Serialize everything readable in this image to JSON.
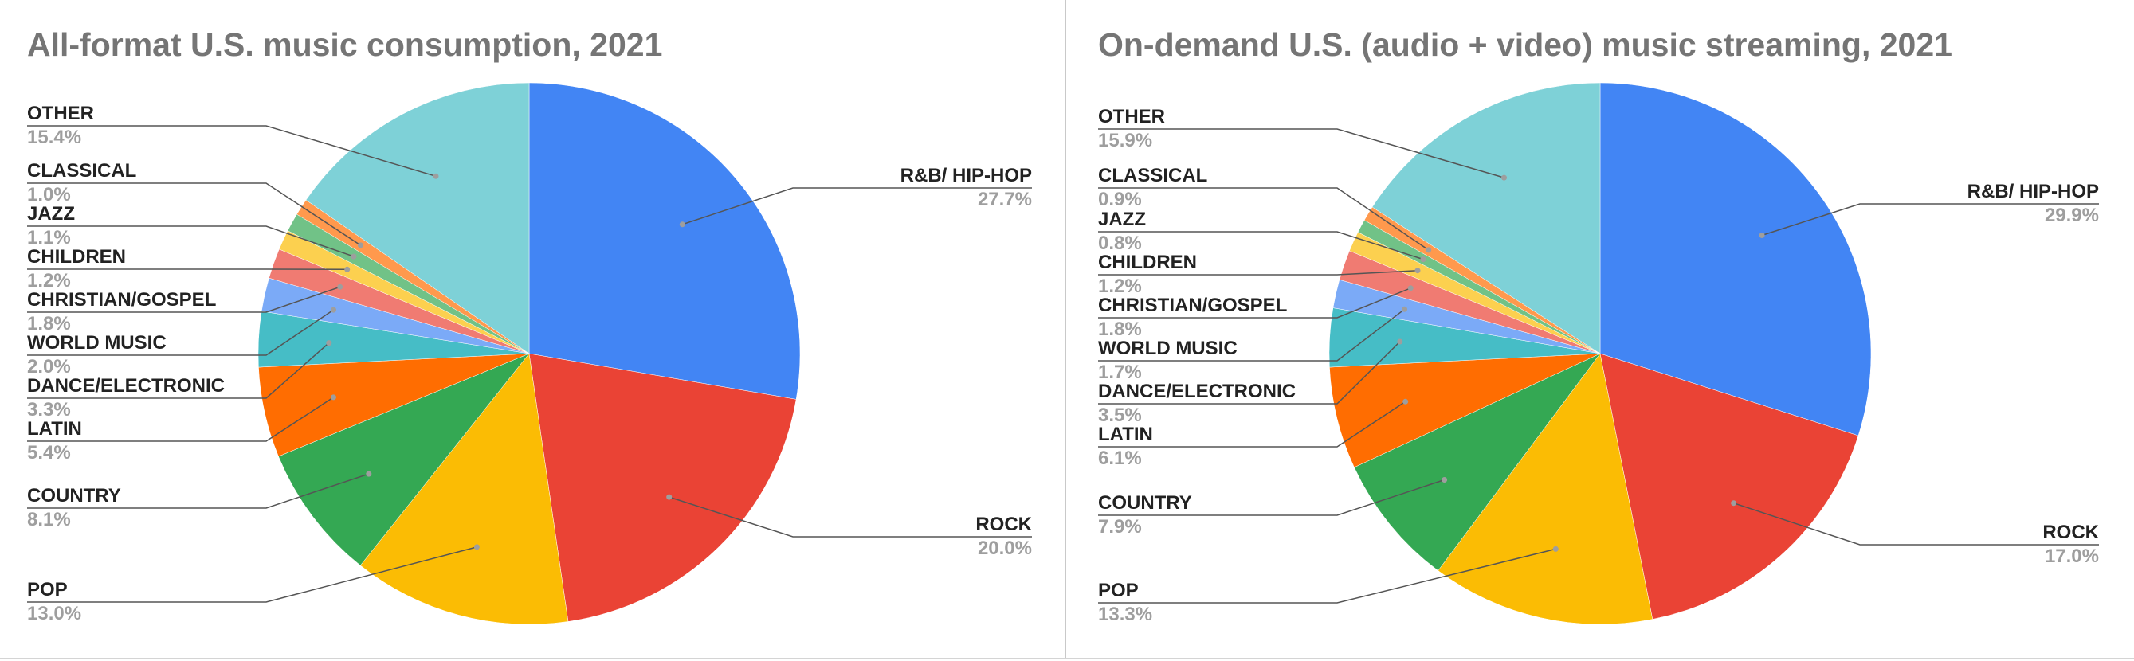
{
  "chart_data": [
    {
      "type": "pie",
      "title": "All-format U.S. music consumption, 2021",
      "slices": [
        {
          "label": "R&B/ HIP-HOP",
          "value": 27.7,
          "display": "27.7%",
          "color": "#4285F4"
        },
        {
          "label": "ROCK",
          "value": 20.0,
          "display": "20.0%",
          "color": "#EA4335"
        },
        {
          "label": "POP",
          "value": 13.0,
          "display": "13.0%",
          "color": "#FBBC04"
        },
        {
          "label": "COUNTRY",
          "value": 8.1,
          "display": "8.1%",
          "color": "#34A853"
        },
        {
          "label": "LATIN",
          "value": 5.4,
          "display": "5.4%",
          "color": "#FF6D01"
        },
        {
          "label": "DANCE/ELECTRONIC",
          "value": 3.3,
          "display": "3.3%",
          "color": "#46BDC6"
        },
        {
          "label": "WORLD MUSIC",
          "value": 2.0,
          "display": "2.0%",
          "color": "#7BAAF7"
        },
        {
          "label": "CHRISTIAN/GOSPEL",
          "value": 1.8,
          "display": "1.8%",
          "color": "#F07B72"
        },
        {
          "label": "CHILDREN",
          "value": 1.2,
          "display": "1.2%",
          "color": "#FCD04F"
        },
        {
          "label": "JAZZ",
          "value": 1.1,
          "display": "1.1%",
          "color": "#71C287"
        },
        {
          "label": "CLASSICAL",
          "value": 1.0,
          "display": "1.0%",
          "color": "#FF994D"
        },
        {
          "label": "OTHER",
          "value": 15.4,
          "display": "15.4%",
          "color": "#7ED1D7"
        }
      ]
    },
    {
      "type": "pie",
      "title": "On-demand U.S. (audio + video) music streaming, 2021",
      "slices": [
        {
          "label": "R&B/ HIP-HOP",
          "value": 29.9,
          "display": "29.9%",
          "color": "#4285F4"
        },
        {
          "label": "ROCK",
          "value": 17.0,
          "display": "17.0%",
          "color": "#EA4335"
        },
        {
          "label": "POP",
          "value": 13.3,
          "display": "13.3%",
          "color": "#FBBC04"
        },
        {
          "label": "COUNTRY",
          "value": 7.9,
          "display": "7.9%",
          "color": "#34A853"
        },
        {
          "label": "LATIN",
          "value": 6.1,
          "display": "6.1%",
          "color": "#FF6D01"
        },
        {
          "label": "DANCE/ELECTRONIC",
          "value": 3.5,
          "display": "3.5%",
          "color": "#46BDC6"
        },
        {
          "label": "WORLD MUSIC",
          "value": 1.7,
          "display": "1.7%",
          "color": "#7BAAF7"
        },
        {
          "label": "CHRISTIAN/GOSPEL",
          "value": 1.8,
          "display": "1.8%",
          "color": "#F07B72"
        },
        {
          "label": "CHILDREN",
          "value": 1.2,
          "display": "1.2%",
          "color": "#FCD04F"
        },
        {
          "label": "JAZZ",
          "value": 0.8,
          "display": "0.8%",
          "color": "#71C287"
        },
        {
          "label": "CLASSICAL",
          "value": 0.9,
          "display": "0.9%",
          "color": "#FF994D"
        },
        {
          "label": "OTHER",
          "value": 15.9,
          "display": "15.9%",
          "color": "#7ED1D7"
        }
      ]
    }
  ]
}
